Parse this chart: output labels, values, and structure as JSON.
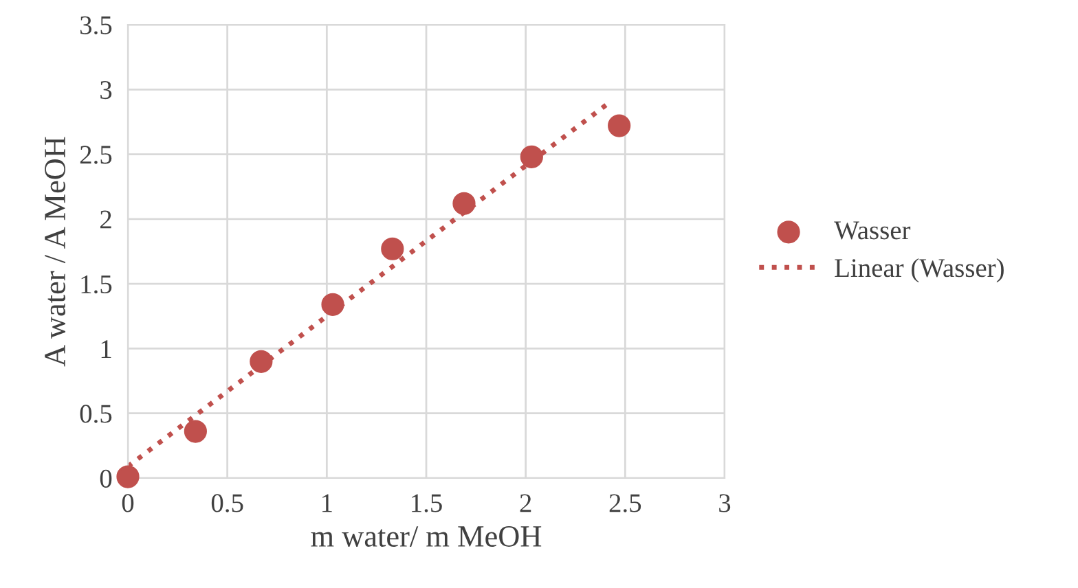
{
  "chart_data": {
    "type": "scatter",
    "xlabel": "m water/ m MeOH",
    "ylabel": "A water / A MeOH",
    "series": [
      {
        "name": "Wasser",
        "color": "#c0504d",
        "marker": "circle",
        "x": [
          0,
          0.34,
          0.67,
          1.03,
          1.33,
          1.69,
          2.03,
          2.47
        ],
        "values": [
          0.01,
          0.36,
          0.9,
          1.34,
          1.77,
          2.12,
          2.48,
          2.72
        ]
      },
      {
        "name": "Linear (Wasser)",
        "type": "line",
        "color": "#c0504d",
        "line_style": "dotted",
        "marker": "none",
        "x": [
          0,
          2.43
        ],
        "values": [
          0.09,
          2.91
        ]
      }
    ],
    "xlim": [
      0,
      3
    ],
    "xticks": [
      0,
      0.5,
      1,
      1.5,
      2,
      2.5,
      3
    ],
    "ylim": [
      0,
      3.5
    ],
    "yticks": [
      0,
      0.5,
      1,
      1.5,
      2,
      2.5,
      3,
      3.5
    ],
    "grid": true,
    "legend": "right"
  }
}
